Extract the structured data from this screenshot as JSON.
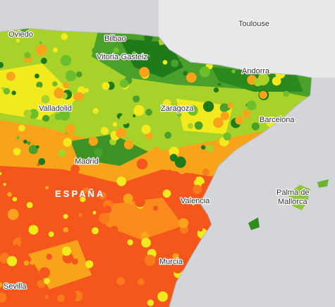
{
  "map": {
    "places": [
      "Oviedo",
      "Bilbao",
      "Vitoria-Gasteiz",
      "Toulouse",
      "Andorra",
      "Valladolid",
      "Zaragoza",
      "Barcelona",
      "Madrid",
      "Valencia",
      "Palma de",
      "Mallorca",
      "Murcia",
      "Sevilla"
    ],
    "country": "ESPAÑA"
  }
}
